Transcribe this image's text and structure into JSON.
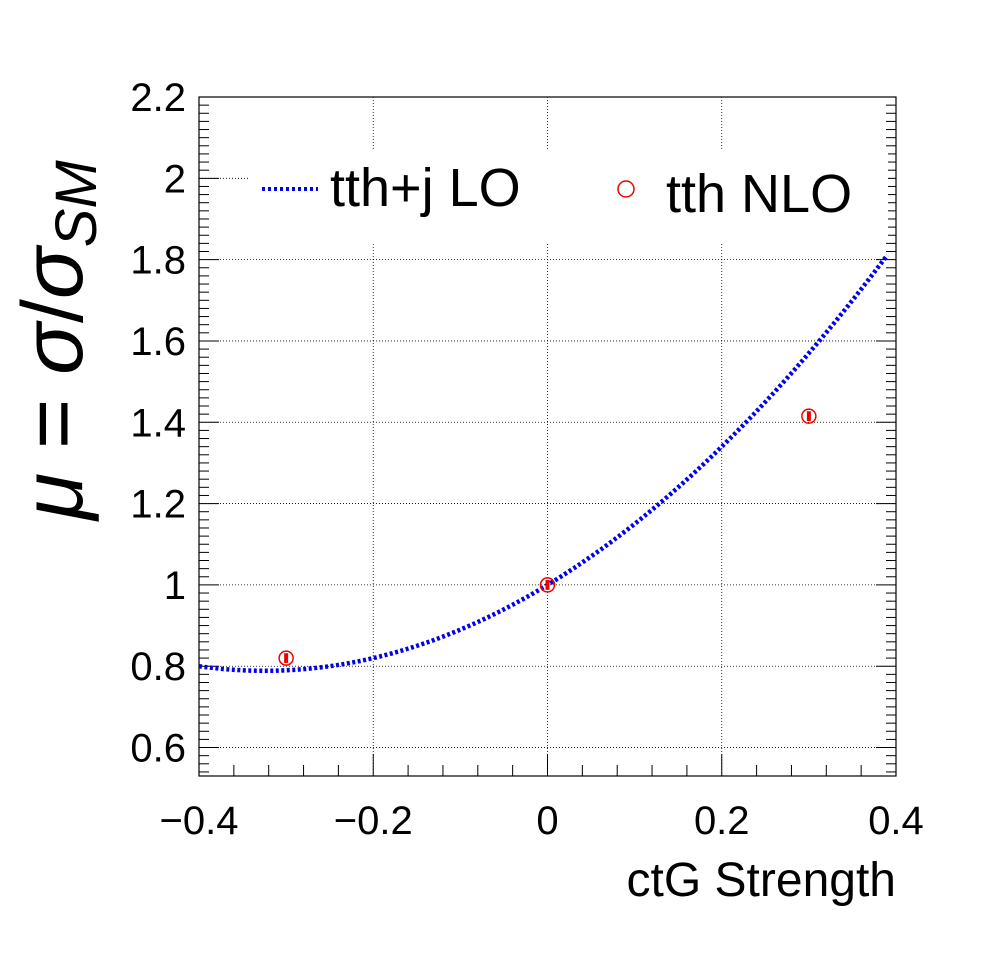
{
  "chart_data": {
    "type": "line",
    "xlabel": "ctG Strength",
    "ylabel": {
      "mu": "μ",
      "equals": " = ",
      "sigma": "σ",
      "slash": "/",
      "sigma2": "σ",
      "subscript": "SM"
    },
    "xlim": [
      -0.4,
      0.4
    ],
    "ylim": [
      0.53,
      2.2
    ],
    "x_ticks": [
      {
        "v": -0.4,
        "label": "−0.4"
      },
      {
        "v": -0.2,
        "label": "−0.2"
      },
      {
        "v": 0,
        "label": "0"
      },
      {
        "v": 0.2,
        "label": "0.2"
      },
      {
        "v": 0.4,
        "label": "0.4"
      }
    ],
    "y_ticks": [
      {
        "v": 0.6,
        "label": "0.6"
      },
      {
        "v": 0.8,
        "label": "0.8"
      },
      {
        "v": 1.0,
        "label": "1"
      },
      {
        "v": 1.2,
        "label": "1.2"
      },
      {
        "v": 1.4,
        "label": "1.4"
      },
      {
        "v": 1.6,
        "label": "1.6"
      },
      {
        "v": 1.8,
        "label": "1.8"
      },
      {
        "v": 2.0,
        "label": "2"
      },
      {
        "v": 2.2,
        "label": "2.2"
      }
    ],
    "grid": true,
    "legend_position": "top",
    "series": [
      {
        "name": "tth+j LO",
        "style": "dotted-line",
        "color": "#0000ee",
        "curve": {
          "a": 2.0,
          "b": 1.3,
          "c": 1.0
        },
        "x_range": [
          -0.4,
          0.39
        ]
      },
      {
        "name": "tth NLO",
        "style": "open-circle-with-error",
        "color": "#ee0000",
        "points": [
          {
            "x": -0.3,
            "y": 0.82,
            "err": 0.012
          },
          {
            "x": 0.0,
            "y": 1.0,
            "err": 0.012
          },
          {
            "x": 0.3,
            "y": 1.415,
            "err": 0.012
          }
        ]
      }
    ]
  }
}
